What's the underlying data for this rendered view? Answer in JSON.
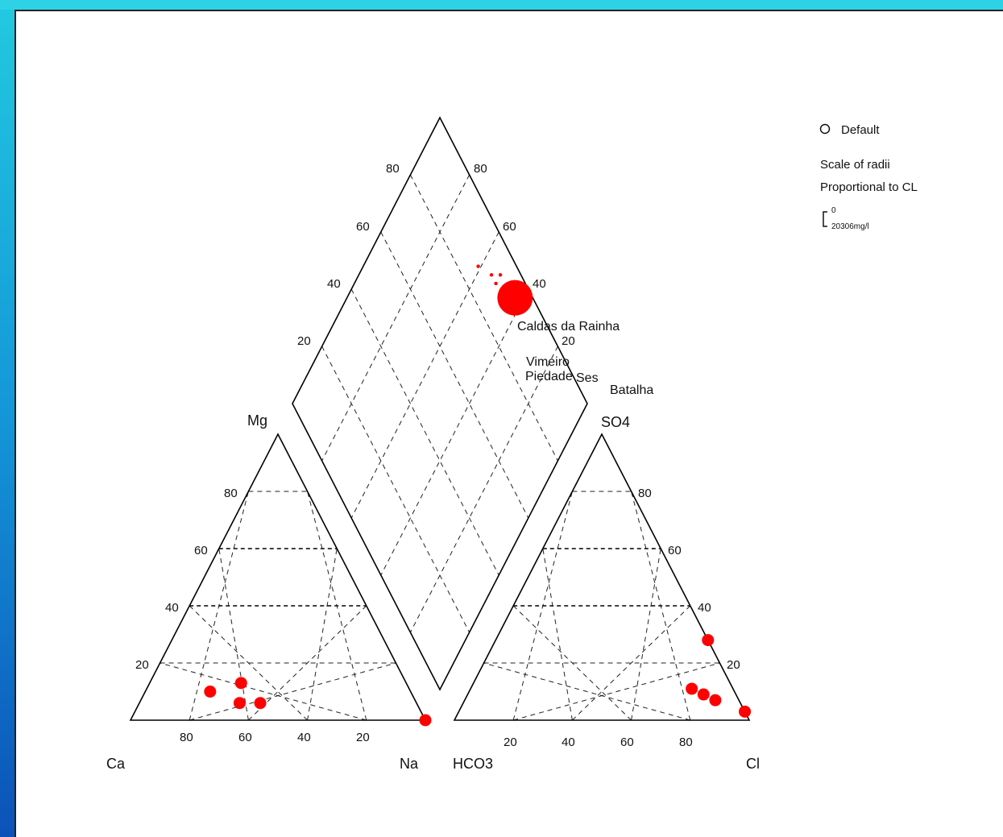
{
  "axes": {
    "ca": "Ca",
    "mg": "Mg",
    "na": "Na",
    "hco3": "HCO3",
    "so4": "SO4",
    "cl": "Cl"
  },
  "ticks": {
    "cation_bottom": [
      "80",
      "60",
      "40",
      "20"
    ],
    "cation_left": [
      "20",
      "40",
      "60",
      "80"
    ],
    "anion_bottom": [
      "20",
      "40",
      "60",
      "80"
    ],
    "anion_right": [
      "80",
      "60",
      "40",
      "20"
    ],
    "diamond_left": [
      "80",
      "60",
      "40",
      "20"
    ],
    "diamond_right": [
      "80",
      "60",
      "40",
      "20"
    ]
  },
  "legend": {
    "symbol_label": "Default",
    "scale_line1": "Scale of radii",
    "scale_line2": "Proportional to CL",
    "scale_min": "0",
    "scale_max": "20306mg/l"
  },
  "labels": {
    "caldas": "Caldas da Rainha",
    "vimeiro": "Vimeiro",
    "piedade": "Piedade",
    "ses": "Ses",
    "batalha": "Batalha"
  },
  "colors": {
    "points": "#ff0000",
    "grid": "#222222"
  },
  "chart_data": {
    "type": "scatter",
    "subtype": "piper-trilinear",
    "cation_points": [
      {
        "Ca": 68,
        "Mg": 10,
        "Na": 22,
        "size": "medium"
      },
      {
        "Ca": 60,
        "Mg": 6,
        "Na": 34,
        "size": "medium"
      },
      {
        "Ca": 56,
        "Mg": 13,
        "Na": 31,
        "size": "medium"
      },
      {
        "Ca": 53,
        "Mg": 6,
        "Na": 41,
        "size": "medium"
      },
      {
        "Ca": 0,
        "Mg": 0,
        "Na": 100,
        "size": "medium"
      }
    ],
    "anion_points": [
      {
        "HCO3": 0,
        "SO4": 28,
        "Cl": 72,
        "size": "medium"
      },
      {
        "HCO3": 14,
        "SO4": 11,
        "Cl": 75,
        "size": "medium"
      },
      {
        "HCO3": 11,
        "SO4": 9,
        "Cl": 80,
        "size": "medium"
      },
      {
        "HCO3": 8,
        "SO4": 7,
        "Cl": 85,
        "size": "medium"
      },
      {
        "HCO3": 0,
        "SO4": 3,
        "Cl": 97,
        "size": "medium"
      }
    ],
    "diamond_points": [
      {
        "name": "Caldas da Rainha",
        "x": 0.87,
        "y": 0.61,
        "size": "small"
      },
      {
        "name": "Vimeiro",
        "x": 0.9,
        "y": 0.55,
        "size": "small"
      },
      {
        "name": "Piedade",
        "x": 0.9,
        "y": 0.52,
        "size": "small"
      },
      {
        "name": "Ses",
        "x": 0.93,
        "y": 0.52,
        "size": "small"
      },
      {
        "name": "Batalha",
        "x": 0.94,
        "y": 0.43,
        "size": "large"
      }
    ]
  }
}
